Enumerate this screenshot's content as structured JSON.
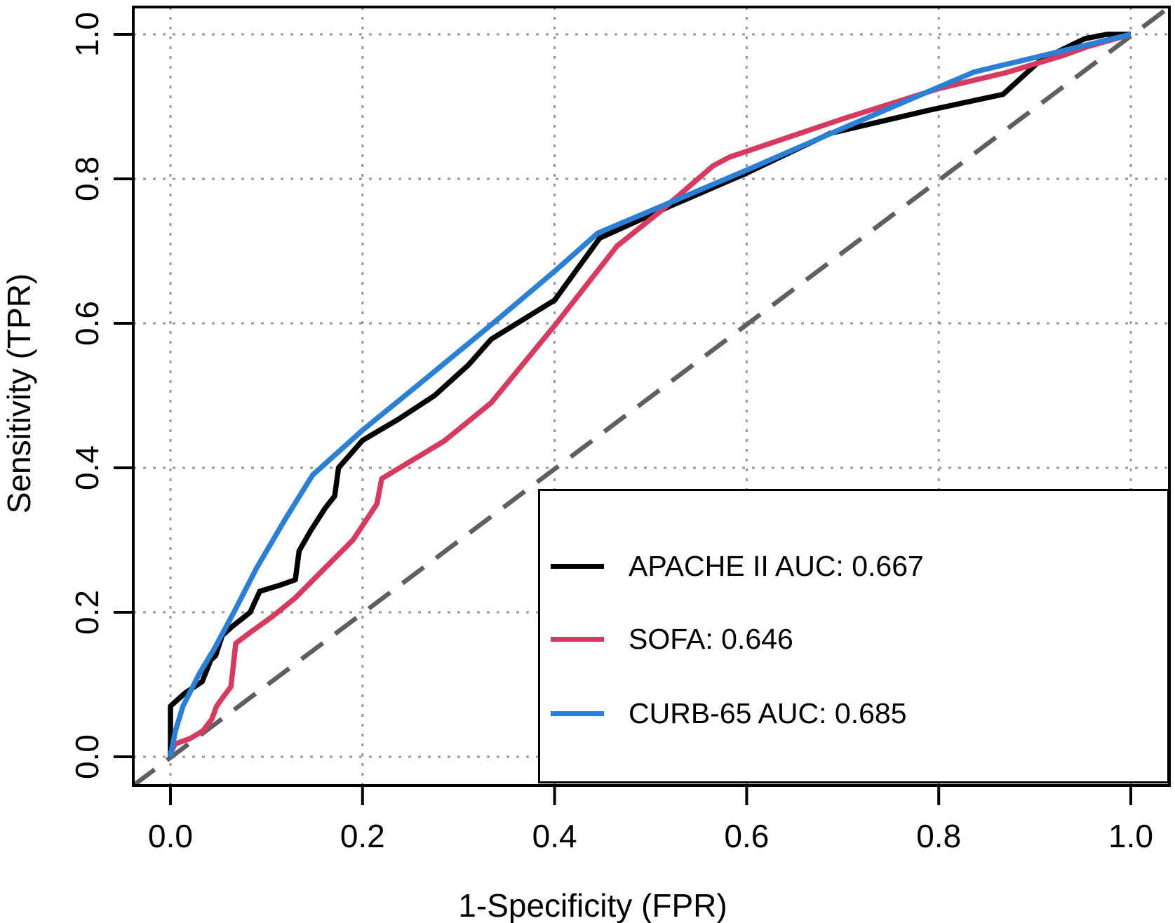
{
  "figure": {
    "background": "#ffffff"
  },
  "chart_data": {
    "type": "line",
    "subtype": "roc-curve",
    "title": "",
    "xlabel": "1-Specificity (FPR)",
    "ylabel": "Sensitivity (TPR)",
    "xlim": [
      0,
      1
    ],
    "ylim": [
      0,
      1
    ],
    "grid": "dotted",
    "grid_color": "#989898",
    "x_ticks": [
      0,
      0.2,
      0.4,
      0.6,
      0.8,
      1.0
    ],
    "x_tick_labels": [
      "0.0",
      "0.2",
      "0.4",
      "0.6",
      "0.8",
      "1.0"
    ],
    "y_ticks": [
      0,
      0.2,
      0.4,
      0.6,
      0.8,
      1.0
    ],
    "y_tick_labels": [
      "0.0",
      "0.2",
      "0.4",
      "0.6",
      "0.8",
      "1.0"
    ],
    "reference_line": {
      "name": "chance-diagonal",
      "style": "dashed",
      "color": "#5f5f5f",
      "from": [
        0,
        0
      ],
      "to": [
        1,
        1
      ]
    },
    "legend": {
      "position": "bottom-right",
      "border_color": "#000000",
      "background": "#ffffff"
    },
    "series": [
      {
        "name": "APACHE II",
        "auc": 0.667,
        "legend_label": "APACHE II AUC: 0.667",
        "color": "#000000",
        "points": [
          [
            0,
            0
          ],
          [
            0,
            0.07
          ],
          [
            0.015,
            0.088
          ],
          [
            0.033,
            0.104
          ],
          [
            0.042,
            0.134
          ],
          [
            0.047,
            0.14
          ],
          [
            0.054,
            0.168
          ],
          [
            0.064,
            0.18
          ],
          [
            0.083,
            0.2
          ],
          [
            0.093,
            0.229
          ],
          [
            0.115,
            0.238
          ],
          [
            0.13,
            0.245
          ],
          [
            0.134,
            0.285
          ],
          [
            0.146,
            0.313
          ],
          [
            0.161,
            0.344
          ],
          [
            0.171,
            0.361
          ],
          [
            0.175,
            0.4
          ],
          [
            0.2,
            0.438
          ],
          [
            0.237,
            0.467
          ],
          [
            0.275,
            0.5
          ],
          [
            0.31,
            0.542
          ],
          [
            0.334,
            0.578
          ],
          [
            0.4,
            0.632
          ],
          [
            0.447,
            0.718
          ],
          [
            0.52,
            0.762
          ],
          [
            0.6,
            0.808
          ],
          [
            0.687,
            0.863
          ],
          [
            0.79,
            0.895
          ],
          [
            0.867,
            0.917
          ],
          [
            0.905,
            0.963
          ],
          [
            0.927,
            0.978
          ],
          [
            0.952,
            0.994
          ],
          [
            0.975,
            1
          ],
          [
            1,
            1
          ]
        ]
      },
      {
        "name": "SOFA",
        "auc": 0.646,
        "legend_label": "SOFA: 0.646",
        "color": "#d63a5f",
        "points": [
          [
            0,
            0.005
          ],
          [
            0.005,
            0.018
          ],
          [
            0.02,
            0.025
          ],
          [
            0.034,
            0.036
          ],
          [
            0.043,
            0.052
          ],
          [
            0.048,
            0.07
          ],
          [
            0.055,
            0.083
          ],
          [
            0.063,
            0.097
          ],
          [
            0.068,
            0.157
          ],
          [
            0.085,
            0.174
          ],
          [
            0.107,
            0.195
          ],
          [
            0.13,
            0.22
          ],
          [
            0.16,
            0.26
          ],
          [
            0.19,
            0.3
          ],
          [
            0.215,
            0.35
          ],
          [
            0.22,
            0.385
          ],
          [
            0.245,
            0.405
          ],
          [
            0.285,
            0.437
          ],
          [
            0.334,
            0.49
          ],
          [
            0.402,
            0.6
          ],
          [
            0.465,
            0.707
          ],
          [
            0.51,
            0.755
          ],
          [
            0.565,
            0.818
          ],
          [
            0.582,
            0.83
          ],
          [
            0.7,
            0.883
          ],
          [
            0.8,
            0.925
          ],
          [
            0.87,
            0.947
          ],
          [
            0.93,
            0.971
          ],
          [
            0.955,
            0.983
          ],
          [
            1,
            1
          ]
        ]
      },
      {
        "name": "CURB-65",
        "auc": 0.685,
        "legend_label": "CURB-65 AUC: 0.685",
        "color": "#2b7fd4",
        "points": [
          [
            0,
            0
          ],
          [
            0.005,
            0.035
          ],
          [
            0.013,
            0.07
          ],
          [
            0.03,
            0.115
          ],
          [
            0.045,
            0.148
          ],
          [
            0.066,
            0.2
          ],
          [
            0.09,
            0.262
          ],
          [
            0.12,
            0.33
          ],
          [
            0.148,
            0.39
          ],
          [
            0.2,
            0.452
          ],
          [
            0.26,
            0.517
          ],
          [
            0.334,
            0.598
          ],
          [
            0.4,
            0.672
          ],
          [
            0.445,
            0.725
          ],
          [
            0.52,
            0.767
          ],
          [
            0.6,
            0.812
          ],
          [
            0.7,
            0.87
          ],
          [
            0.8,
            0.927
          ],
          [
            0.837,
            0.948
          ],
          [
            0.9,
            0.968
          ],
          [
            0.95,
            0.984
          ],
          [
            1,
            1
          ]
        ]
      }
    ]
  }
}
